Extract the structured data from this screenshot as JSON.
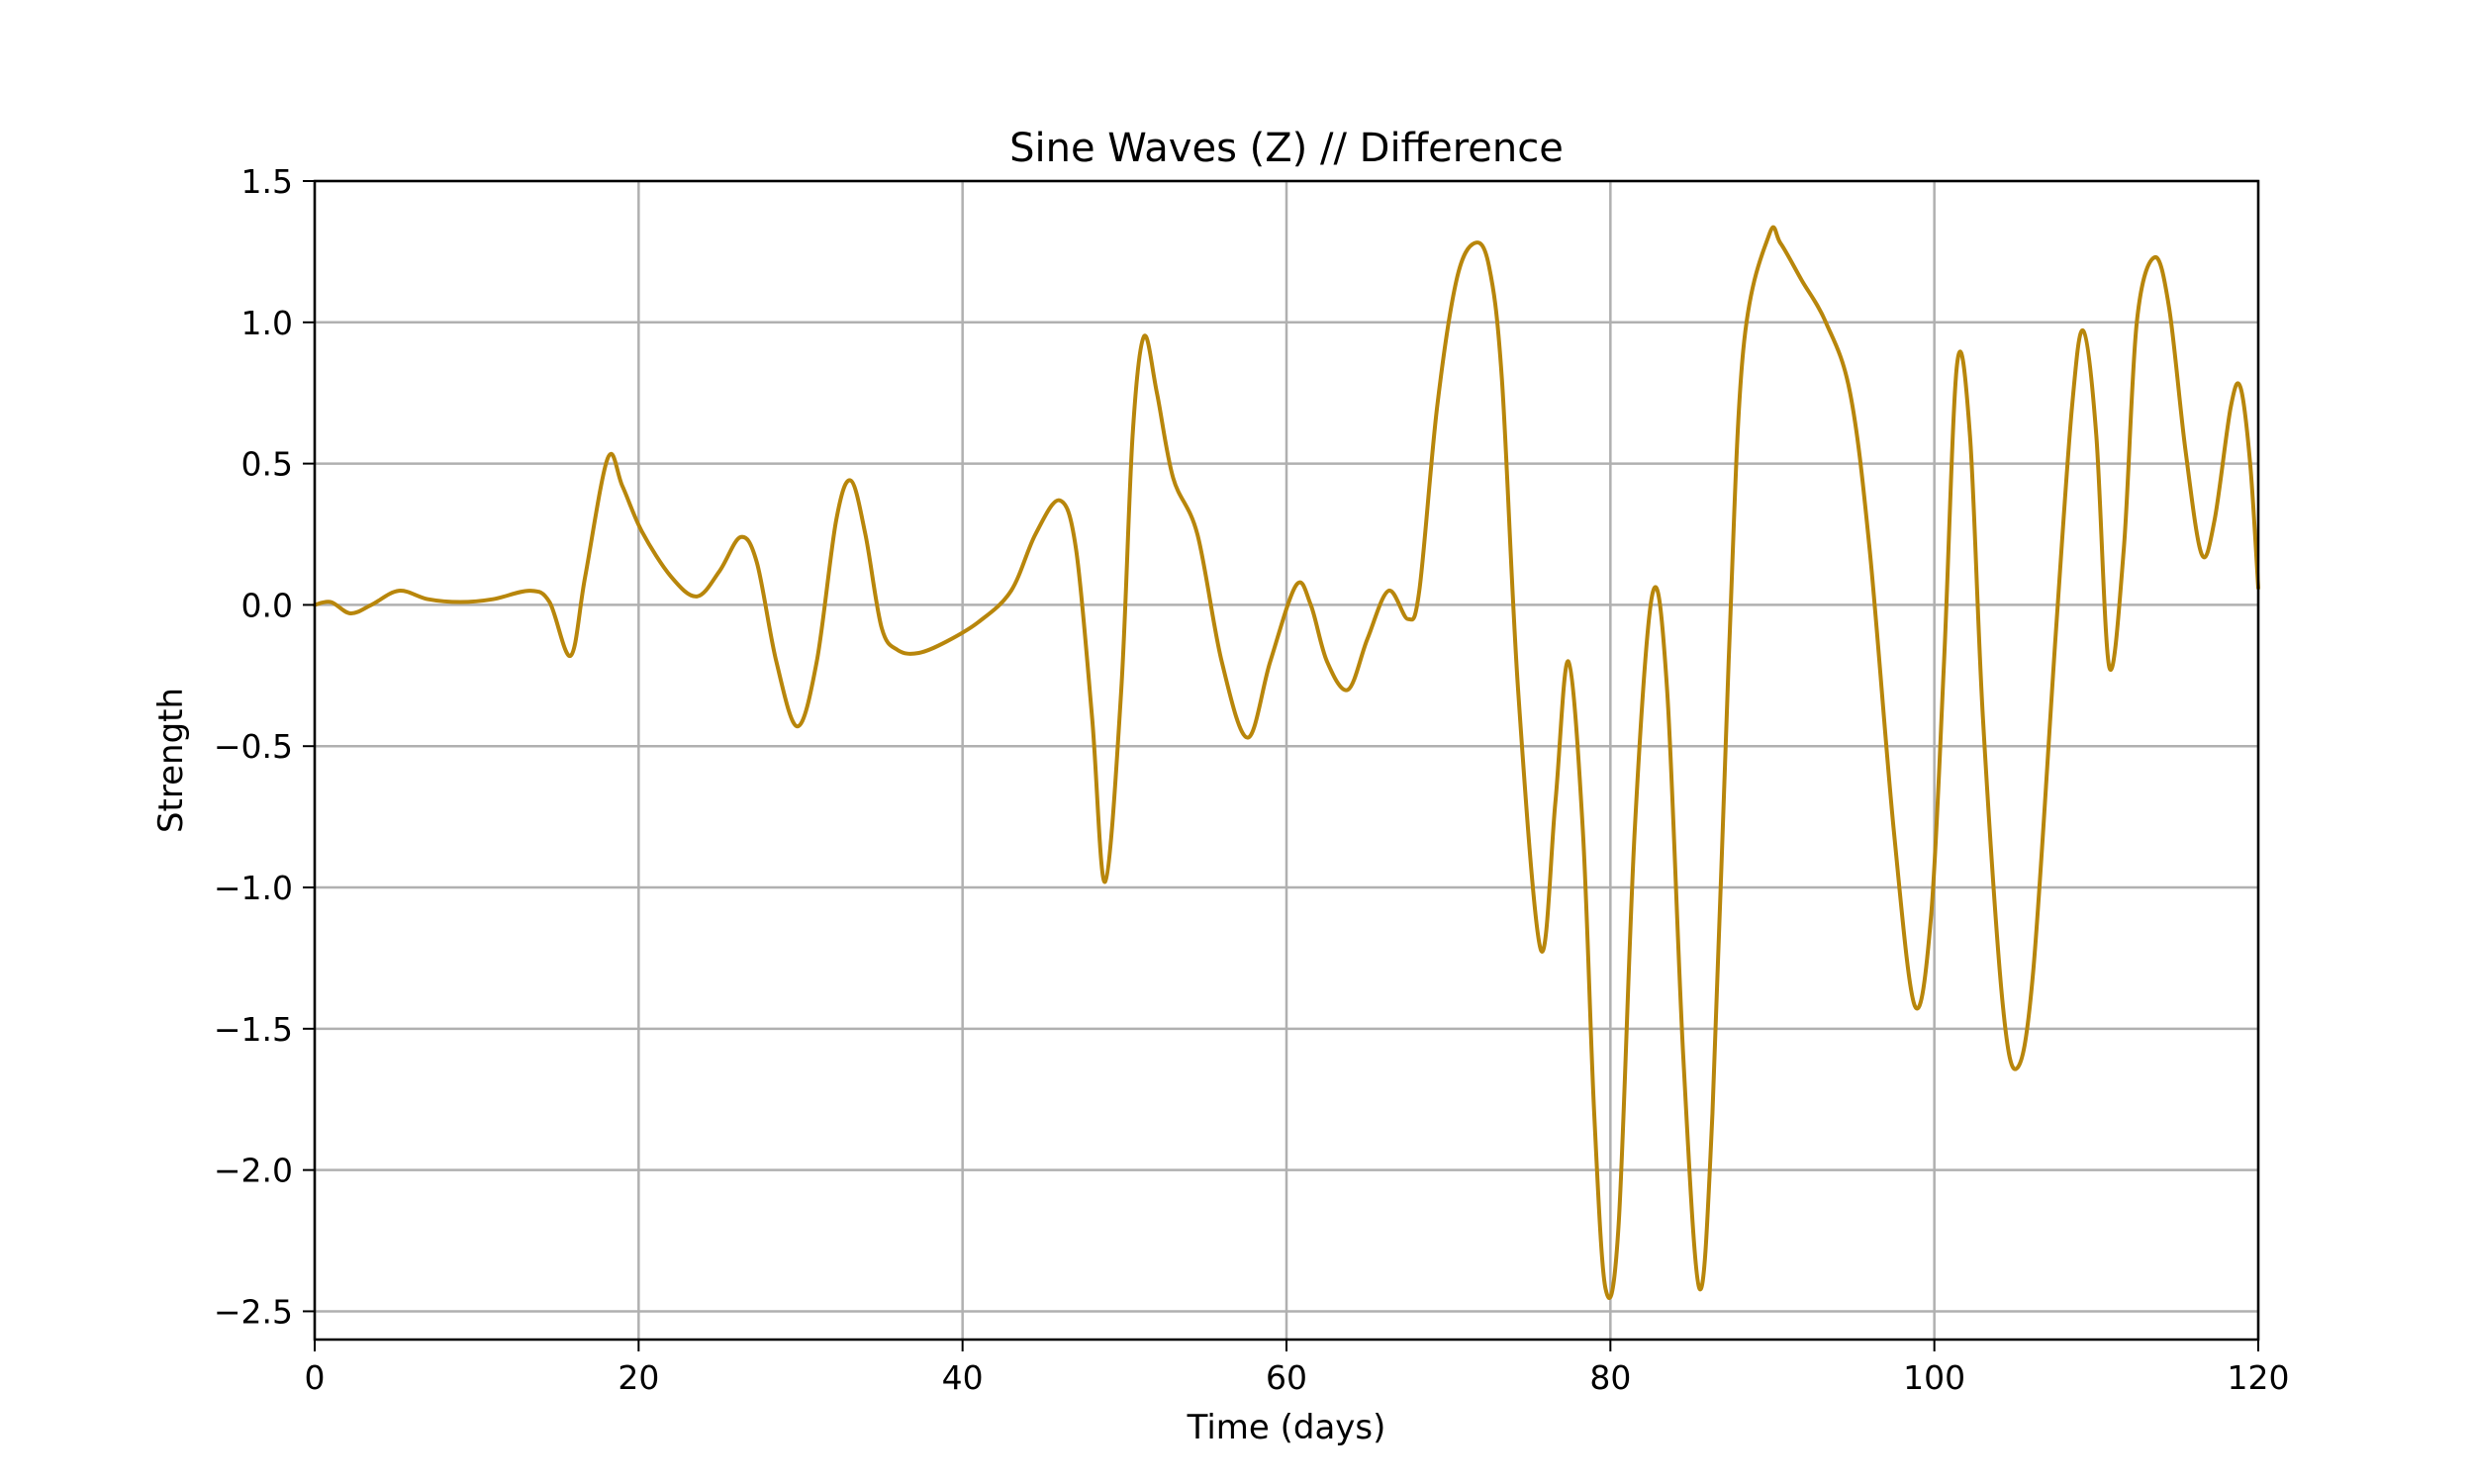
{
  "chart_data": {
    "type": "line",
    "title": "Sine Waves (Z) // Difference",
    "xlabel": "Time (days)",
    "ylabel": "Strength",
    "xlim": [
      0,
      120
    ],
    "ylim": [
      -2.6,
      1.5
    ],
    "xticks": [
      0,
      20,
      40,
      60,
      80,
      100,
      120
    ],
    "xtick_labels": [
      "0",
      "20",
      "40",
      "60",
      "80",
      "100",
      "120"
    ],
    "yticks": [
      -2.5,
      -2.0,
      -1.5,
      -1.0,
      -0.5,
      0.0,
      0.5,
      1.0,
      1.5
    ],
    "ytick_labels": [
      "−2.5",
      "−2.0",
      "−1.5",
      "−1.0",
      "−0.5",
      "0.0",
      "0.5",
      "1.0",
      "1.5"
    ],
    "grid": true,
    "series": [
      {
        "color": "#b8860b",
        "points": [
          [
            0,
            0.0
          ],
          [
            1,
            0.01
          ],
          [
            2.2,
            -0.03
          ],
          [
            3.5,
            0.0
          ],
          [
            5.2,
            0.05
          ],
          [
            7,
            0.02
          ],
          [
            9,
            0.01
          ],
          [
            11,
            0.02
          ],
          [
            13.3,
            0.05
          ],
          [
            14.5,
            0.01
          ],
          [
            15.8,
            -0.18
          ],
          [
            16.7,
            0.1
          ],
          [
            18.1,
            0.52
          ],
          [
            19.0,
            0.42
          ],
          [
            20.2,
            0.26
          ],
          [
            22,
            0.1
          ],
          [
            23.6,
            0.03
          ],
          [
            25,
            0.12
          ],
          [
            26.3,
            0.24
          ],
          [
            27.3,
            0.15
          ],
          [
            28.5,
            -0.2
          ],
          [
            29.8,
            -0.43
          ],
          [
            31,
            -0.2
          ],
          [
            32.2,
            0.3
          ],
          [
            33.1,
            0.44
          ],
          [
            34,
            0.25
          ],
          [
            35,
            -0.08
          ],
          [
            36,
            -0.16
          ],
          [
            37.3,
            -0.17
          ],
          [
            39,
            -0.13
          ],
          [
            41,
            -0.06
          ],
          [
            43,
            0.05
          ],
          [
            44.5,
            0.25
          ],
          [
            46,
            0.37
          ],
          [
            47,
            0.2
          ],
          [
            48,
            -0.4
          ],
          [
            48.8,
            -0.98
          ],
          [
            49.8,
            -0.3
          ],
          [
            50.5,
            0.6
          ],
          [
            51.2,
            0.95
          ],
          [
            52,
            0.75
          ],
          [
            53,
            0.45
          ],
          [
            54.5,
            0.25
          ],
          [
            56,
            -0.2
          ],
          [
            57.6,
            -0.47
          ],
          [
            59,
            -0.2
          ],
          [
            60.6,
            0.07
          ],
          [
            61.5,
            0.0
          ],
          [
            62.5,
            -0.2
          ],
          [
            63.8,
            -0.3
          ],
          [
            65,
            -0.12
          ],
          [
            66.3,
            0.05
          ],
          [
            67.5,
            -0.05
          ],
          [
            68.2,
            0.05
          ],
          [
            69.3,
            0.7
          ],
          [
            70.5,
            1.15
          ],
          [
            71.6,
            1.28
          ],
          [
            72.5,
            1.2
          ],
          [
            73.3,
            0.8
          ],
          [
            74.3,
            -0.3
          ],
          [
            75.7,
            -1.22
          ],
          [
            76.6,
            -0.7
          ],
          [
            77.4,
            -0.2
          ],
          [
            78.3,
            -0.8
          ],
          [
            79.0,
            -1.8
          ],
          [
            79.7,
            -2.42
          ],
          [
            80.5,
            -2.2
          ],
          [
            81.5,
            -0.8
          ],
          [
            82.6,
            0.04
          ],
          [
            83.5,
            -0.3
          ],
          [
            84.5,
            -1.6
          ],
          [
            85.5,
            -2.42
          ],
          [
            86.3,
            -1.8
          ],
          [
            87.3,
            -0.2
          ],
          [
            88.2,
            0.9
          ],
          [
            89.8,
            1.31
          ],
          [
            90.5,
            1.28
          ],
          [
            91.8,
            1.15
          ],
          [
            93.3,
            1.0
          ],
          [
            94.8,
            0.75
          ],
          [
            96,
            0.2
          ],
          [
            97.5,
            -0.8
          ],
          [
            98.8,
            -1.42
          ],
          [
            99.8,
            -1.1
          ],
          [
            100.6,
            -0.2
          ],
          [
            101.4,
            0.85
          ],
          [
            102.2,
            0.6
          ],
          [
            103,
            -0.4
          ],
          [
            104.2,
            -1.4
          ],
          [
            105.1,
            -1.64
          ],
          [
            106.1,
            -1.3
          ],
          [
            107.5,
            -0.1
          ],
          [
            108.5,
            0.7
          ],
          [
            109.2,
            0.97
          ],
          [
            110,
            0.6
          ],
          [
            110.8,
            -0.22
          ],
          [
            111.7,
            0.2
          ],
          [
            112.5,
            1.0
          ],
          [
            113.6,
            1.23
          ],
          [
            114.5,
            1.05
          ],
          [
            115.5,
            0.55
          ],
          [
            116.5,
            0.18
          ],
          [
            117.3,
            0.3
          ],
          [
            118.3,
            0.7
          ],
          [
            118.9,
            0.77
          ],
          [
            119.5,
            0.5
          ],
          [
            120,
            0.06
          ]
        ]
      }
    ]
  }
}
